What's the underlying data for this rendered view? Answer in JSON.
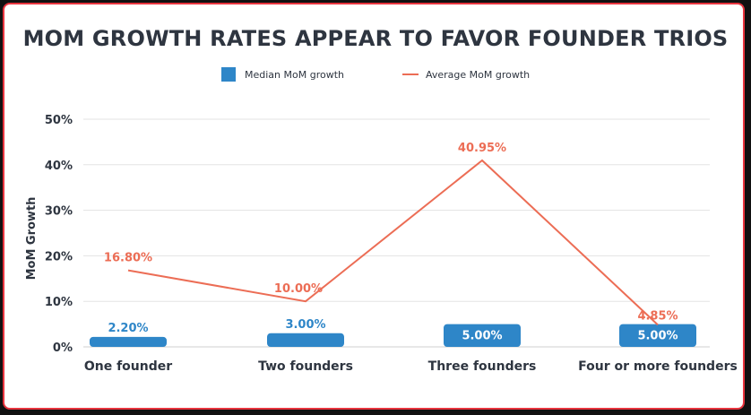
{
  "chart_data": {
    "type": "bar",
    "title": "MOM GROWTH RATES APPEAR TO FAVOR FOUNDER TRIOS",
    "ylabel": "MoM Growth",
    "xlabel": "",
    "ylim": [
      0,
      50
    ],
    "yticks": [
      "0%",
      "10%",
      "20%",
      "30%",
      "40%",
      "50%"
    ],
    "grid": true,
    "legend_position": "top-center",
    "categories": [
      "One founder",
      "Two founders",
      "Three founders",
      "Four or more founders"
    ],
    "series": [
      {
        "name": "Median MoM growth",
        "type": "bar",
        "color": "#2e86c8",
        "values": [
          2.2,
          3.0,
          5.0,
          5.0
        ],
        "labels": [
          "2.20%",
          "3.00%",
          "5.00%",
          "5.00%"
        ]
      },
      {
        "name": "Average MoM growth",
        "type": "line",
        "color": "#ec6d55",
        "values": [
          16.8,
          10.0,
          40.95,
          4.85
        ],
        "labels": [
          "16.80%",
          "10.00%",
          "40.95%",
          "4.85%"
        ]
      }
    ]
  }
}
